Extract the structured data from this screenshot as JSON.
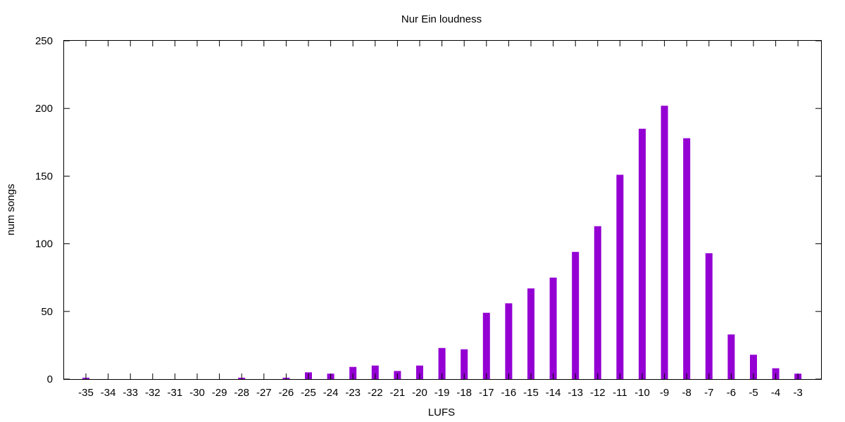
{
  "chart_data": {
    "type": "bar",
    "title": "Nur Ein loudness",
    "xlabel": "LUFS",
    "ylabel": "num songs",
    "categories": [
      "-35",
      "-34",
      "-33",
      "-32",
      "-31",
      "-30",
      "-29",
      "-28",
      "-27",
      "-26",
      "-25",
      "-24",
      "-23",
      "-22",
      "-21",
      "-20",
      "-19",
      "-18",
      "-17",
      "-16",
      "-15",
      "-14",
      "-13",
      "-12",
      "-11",
      "-10",
      "-9",
      "-8",
      "-7",
      "-6",
      "-5",
      "-4",
      "-3"
    ],
    "values": [
      1,
      0,
      0,
      0,
      0,
      0,
      0,
      1,
      0,
      1,
      5,
      4,
      9,
      10,
      6,
      10,
      23,
      22,
      49,
      56,
      67,
      75,
      94,
      113,
      151,
      185,
      202,
      178,
      93,
      33,
      18,
      8,
      4
    ],
    "ylim": [
      0,
      250
    ],
    "yticks": [
      0,
      50,
      100,
      150,
      200,
      250
    ],
    "bar_color": "#9400D3",
    "grid": false,
    "legend": "none"
  }
}
